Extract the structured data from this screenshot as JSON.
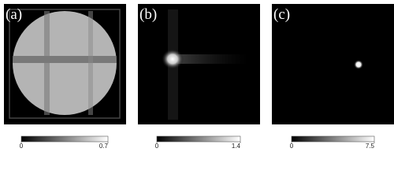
{
  "panels": [
    {
      "label": "(a)",
      "colorbar": {
        "lim": [
          0,
          0.7
        ],
        "ticks": [
          0,
          0.7
        ]
      }
    },
    {
      "label": "(b)",
      "colorbar": {
        "lim": [
          0,
          1.4
        ],
        "ticks": [
          0,
          1.4
        ]
      }
    },
    {
      "label": "(c)",
      "colorbar": {
        "lim": [
          0,
          7.5
        ],
        "ticks": [
          0,
          7.5
        ]
      }
    }
  ]
}
